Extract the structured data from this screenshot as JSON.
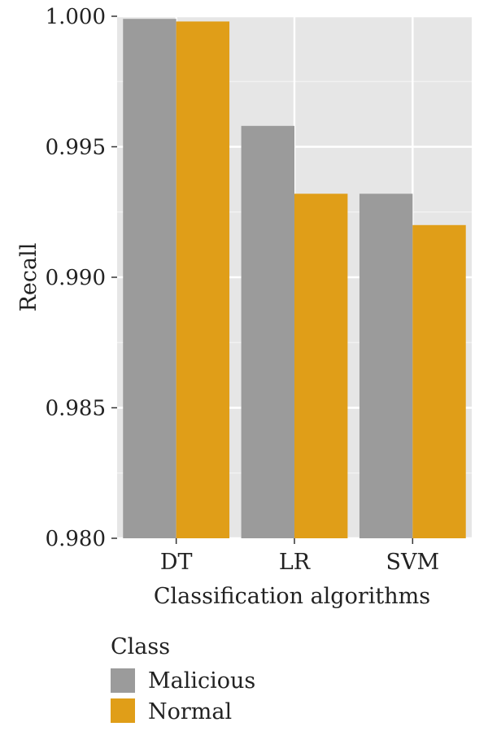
{
  "chart_data": {
    "type": "bar",
    "categories": [
      "DT",
      "LR",
      "SVM"
    ],
    "series": [
      {
        "name": "Malicious",
        "color": "#9b9b9b",
        "values": [
          0.9999,
          0.9958,
          0.9932
        ]
      },
      {
        "name": "Normal",
        "color": "#e09e18",
        "values": [
          0.9998,
          0.9932,
          0.992
        ]
      }
    ],
    "title": "",
    "xlabel": "Classification algorithms",
    "ylabel": "Recall",
    "ylim": [
      0.98,
      1.0
    ],
    "yticks": [
      0.98,
      0.985,
      0.99,
      0.995,
      1.0
    ],
    "ytick_labels": [
      "0.980",
      "0.985",
      "0.990",
      "0.995",
      "1.000"
    ],
    "grid": true,
    "panel_background": "#e6e6e6",
    "legend": {
      "title": "Class",
      "placement": "bottom-left"
    }
  }
}
